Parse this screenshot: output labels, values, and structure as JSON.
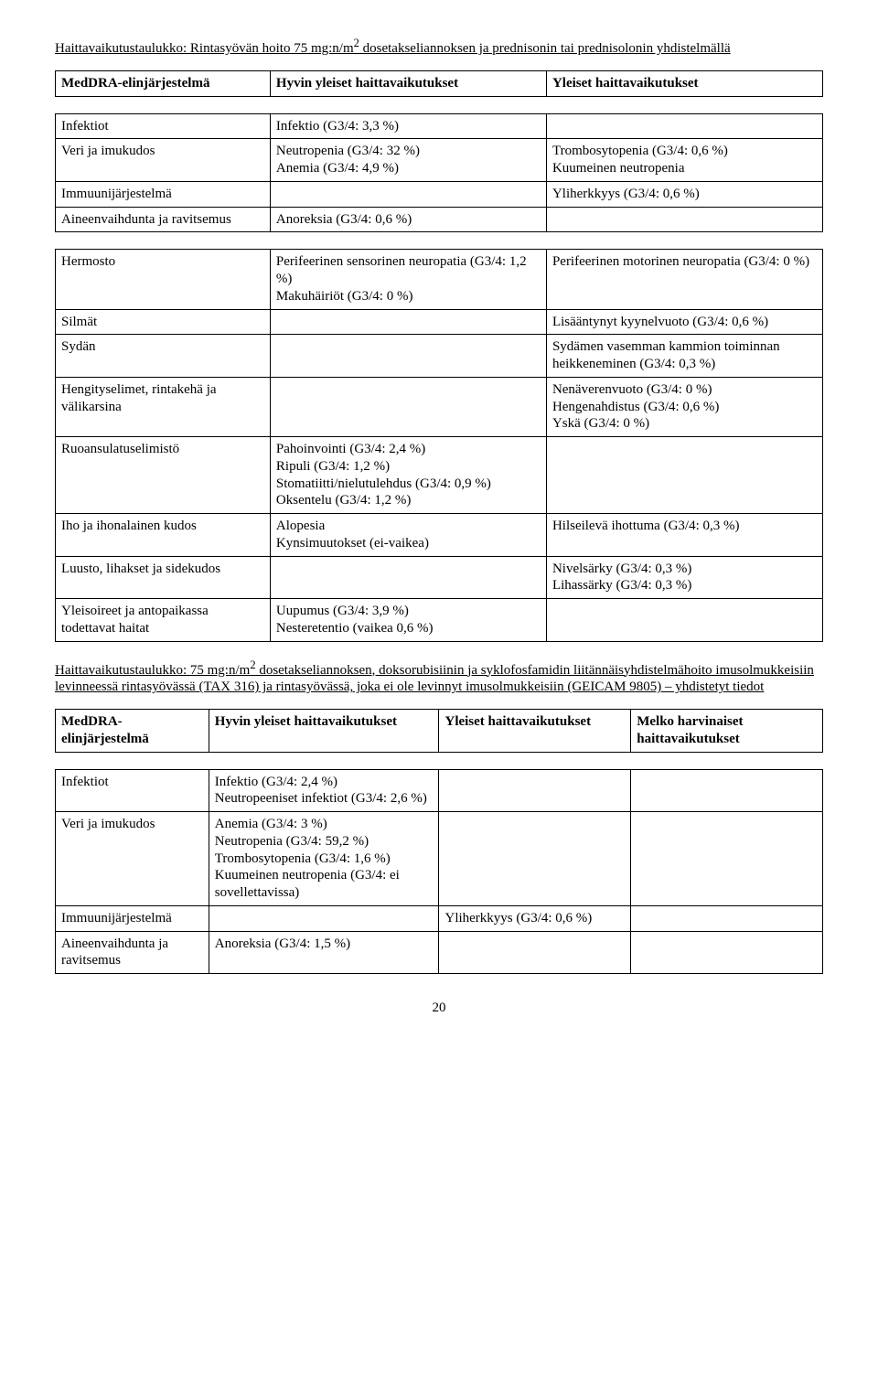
{
  "table1": {
    "title_a": "Haittavaikutustaulukko: Rintasyövän hoito 75 mg:n/m",
    "title_sup": "2",
    "title_b": " dosetakseliannoksen ja prednisonin tai prednisolonin yhdistelmällä",
    "headers": {
      "c1": "MedDRA-elinjärjestelmä",
      "c2": "Hyvin yleiset haittavaikutukset",
      "c3": "Yleiset haittavaikutukset"
    },
    "section_a": [
      [
        "Infektiot",
        "Infektio (G3/4: 3,3 %)",
        ""
      ],
      [
        "Veri ja imukudos",
        "Neutropenia (G3/4: 32 %)\nAnemia (G3/4: 4,9 %)",
        "Trombosytopenia (G3/4: 0,6 %)\nKuumeinen neutropenia"
      ],
      [
        "Immuunijärjestelmä",
        "",
        "Yliherkkyys (G3/4: 0,6 %)"
      ],
      [
        "Aineenvaihdunta ja ravitsemus",
        "Anoreksia (G3/4: 0,6 %)",
        ""
      ]
    ],
    "section_b": [
      [
        "Hermosto",
        "Perifeerinen sensorinen neuropatia (G3/4: 1,2 %)\nMakuhäiriöt (G3/4: 0 %)",
        "Perifeerinen motorinen neuropatia (G3/4: 0 %)"
      ],
      [
        "Silmät",
        "",
        "Lisääntynyt kyynelvuoto  (G3/4: 0,6 %)"
      ],
      [
        "Sydän",
        "",
        "Sydämen vasemman kammion toiminnan heikkeneminen (G3/4: 0,3 %)"
      ],
      [
        "Hengityselimet, rintakehä ja välikarsina",
        "",
        "Nenäverenvuoto (G3/4: 0 %)\nHengenahdistus (G3/4: 0,6 %)\nYskä (G3/4: 0 %)"
      ],
      [
        "Ruoansulatuselimistö",
        "Pahoinvointi (G3/4: 2,4 %)\nRipuli (G3/4: 1,2 %)\nStomatiitti/nielutulehdus  (G3/4: 0,9 %)\nOksentelu (G3/4: 1,2 %)",
        ""
      ],
      [
        "Iho ja ihonalainen kudos",
        "Alopesia\nKynsimuutokset (ei-vaikea)",
        "Hilseilevä ihottuma (G3/4: 0,3 %)"
      ],
      [
        "Luusto, lihakset ja sidekudos",
        "",
        "Nivelsärky (G3/4: 0,3 %)\nLihassärky (G3/4: 0,3 %)"
      ],
      [
        "Yleisoireet ja antopaikassa todettavat haitat",
        "Uupumus (G3/4: 3,9 %)\nNesteretentio (vaikea 0,6 %)",
        ""
      ]
    ]
  },
  "paragraph2": {
    "a": "Haittavaikutustaulukko: 75 mg:n/m",
    "sup": "2",
    "b": " dosetakseliannoksen, doksorubisiinin ja syklofosfamidin liitännäisyhdistelmähoito imusolmukkeisiin levinneessä rintasyövässä (TAX 316) ja rintasyövässä, joka ei ole levinnyt imusolmukkeisiin (GEICAM 9805) – yhdistetyt tiedot"
  },
  "table2": {
    "headers": {
      "c1": "MedDRA-elinjärjestelmä",
      "c2": "Hyvin yleiset haittavaikutukset",
      "c3": "Yleiset haittavaikutukset",
      "c4": "Melko harvinaiset haittavaikutukset"
    },
    "rows": [
      [
        "Infektiot",
        "Infektio (G3/4: 2,4 %)\nNeutropeeniset infektiot (G3/4: 2,6 %)",
        "",
        ""
      ],
      [
        "Veri ja imukudos",
        "Anemia (G3/4: 3 %)\nNeutropenia (G3/4: 59,2 %)\nTrombosytopenia (G3/4: 1,6 %)\nKuumeinen neutropenia (G3/4: ei sovellettavissa)",
        "",
        ""
      ],
      [
        "Immuunijärjestelmä",
        "",
        "Yliherkkyys (G3/4: 0,6 %)",
        ""
      ],
      [
        "Aineenvaihdunta ja ravitsemus",
        "Anoreksia (G3/4: 1,5 %)",
        "",
        ""
      ]
    ]
  },
  "page_number": "20"
}
